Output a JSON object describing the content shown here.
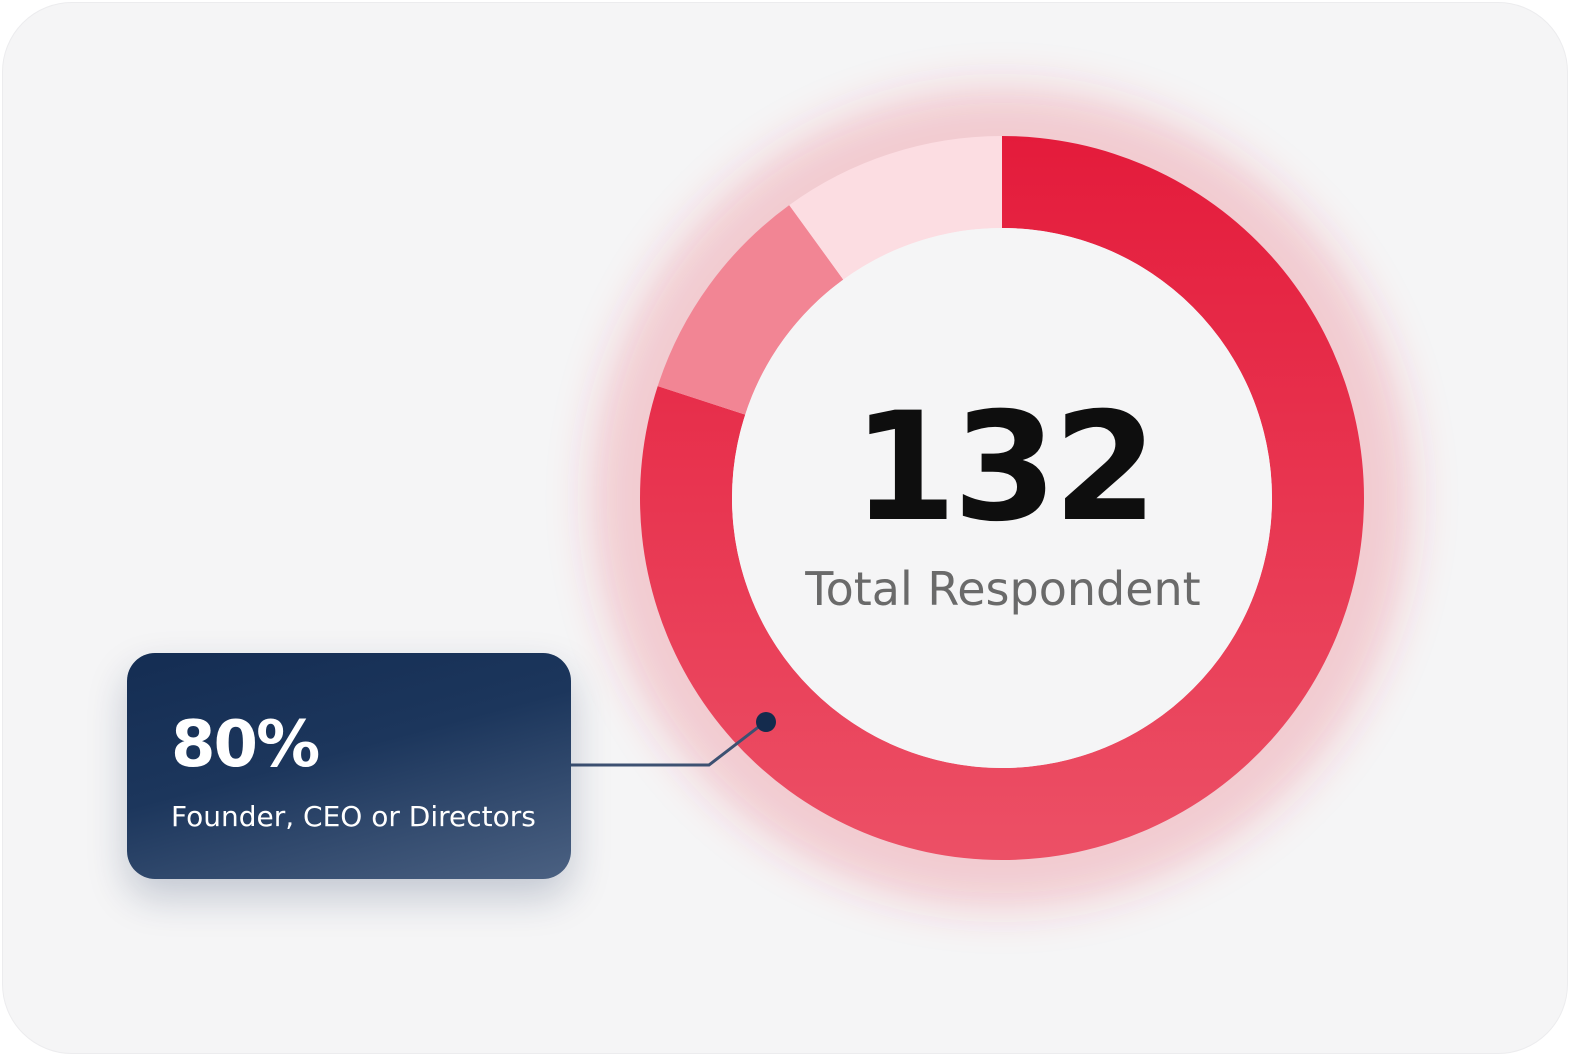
{
  "chart_data": {
    "type": "pie",
    "title": "",
    "center": {
      "value": "132",
      "label": "Total Respondent"
    },
    "slices": [
      {
        "label": "Founder, CEO or Directors",
        "value": 80,
        "display": "80%",
        "color": "#e61e3c"
      },
      {
        "label": "",
        "value": 10,
        "color": "#f28594"
      },
      {
        "label": "",
        "value": 10,
        "color": "#fcdde2"
      }
    ]
  },
  "callout": {
    "value": "80%",
    "label": "Founder, CEO or Directors"
  },
  "colors": {
    "background": "#f5f5f6",
    "primary": "#e61e3c",
    "callout": "#1c365c"
  }
}
